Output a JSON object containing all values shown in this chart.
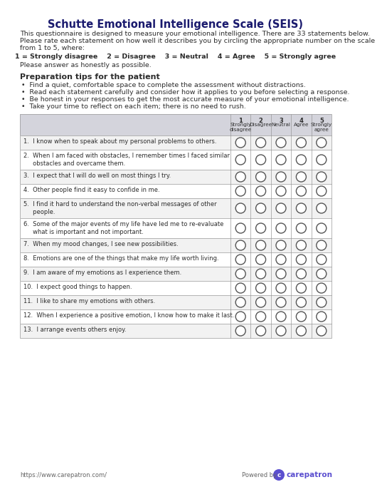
{
  "title": "Schutte Emotional Intelligence Scale (SEIS)",
  "intro_lines": [
    "This questionnaire is designed to measure your emotional intelligence. There are 33 statements below.",
    "Please rate each statement on how well it describes you by circling the appropriate number on the scale",
    "from 1 to 5, where:"
  ],
  "scale_line_parts": [
    {
      "text": "1 = Strongly disagree",
      "bold": true
    },
    {
      "text": "   2 = Disagree",
      "bold": true
    },
    {
      "text": "   3 = Neutral",
      "bold": true
    },
    {
      "text": "   4 = Agree",
      "bold": true
    },
    {
      "text": "   5 = Strongly agree",
      "bold": true
    }
  ],
  "scale_line": "1 = Strongly disagree    2 = Disagree    3 = Neutral    4 = Agree    5 = Strongly agree",
  "honest_note": "Please answer as honestly as possible.",
  "prep_title": "Preparation tips for the patient",
  "tips": [
    "Find a quiet, comfortable space to complete the assessment without distractions.",
    "Read each statement carefully and consider how it applies to you before selecting a response.",
    "Be honest in your responses to get the most accurate measure of your emotional intelligence.",
    "Take your time to reflect on each item; there is no need to rush."
  ],
  "col_headers": [
    {
      "num": "1",
      "label": "Strongly\ndisagree"
    },
    {
      "num": "2",
      "label": "Disagree"
    },
    {
      "num": "3",
      "label": "Neutral"
    },
    {
      "num": "4",
      "label": "Agree"
    },
    {
      "num": "5",
      "label": "Strongly\nagree"
    }
  ],
  "questions": [
    {
      "text": "1.  I know when to speak about my personal problems to others.",
      "lines": 1
    },
    {
      "text": "2.  When I am faced with obstacles, I remember times I faced similar\n     obstacles and overcame them.",
      "lines": 2
    },
    {
      "text": "3.  I expect that I will do well on most things I try.",
      "lines": 1
    },
    {
      "text": "4.  Other people find it easy to confide in me.",
      "lines": 1
    },
    {
      "text": "5.  I find it hard to understand the non-verbal messages of other\n     people.",
      "lines": 2
    },
    {
      "text": "6.  Some of the major events of my life have led me to re-evaluate\n     what is important and not important.",
      "lines": 2
    },
    {
      "text": "7.  When my mood changes, I see new possibilities.",
      "lines": 1
    },
    {
      "text": "8.  Emotions are one of the things that make my life worth living.",
      "lines": 1
    },
    {
      "text": "9.  I am aware of my emotions as I experience them.",
      "lines": 1
    },
    {
      "text": "10.  I expect good things to happen.",
      "lines": 1
    },
    {
      "text": "11.  I like to share my emotions with others.",
      "lines": 1
    },
    {
      "text": "12.  When I experience a positive emotion, I know how to make it last.",
      "lines": 1
    },
    {
      "text": "13.  I arrange events others enjoy.",
      "lines": 1
    }
  ],
  "footer_url": "https://www.carepatron.com/",
  "bg_color": "#ffffff",
  "title_color": "#1a1a6e",
  "body_color": "#2d2d2d",
  "table_header_bg": "#d4d4dc",
  "table_row_alt_bg": "#f2f2f2",
  "table_row_bg": "#ffffff",
  "table_border_color": "#999999",
  "circle_color": "#555555",
  "footer_color": "#666666",
  "carepatron_color": "#5b4fcf"
}
